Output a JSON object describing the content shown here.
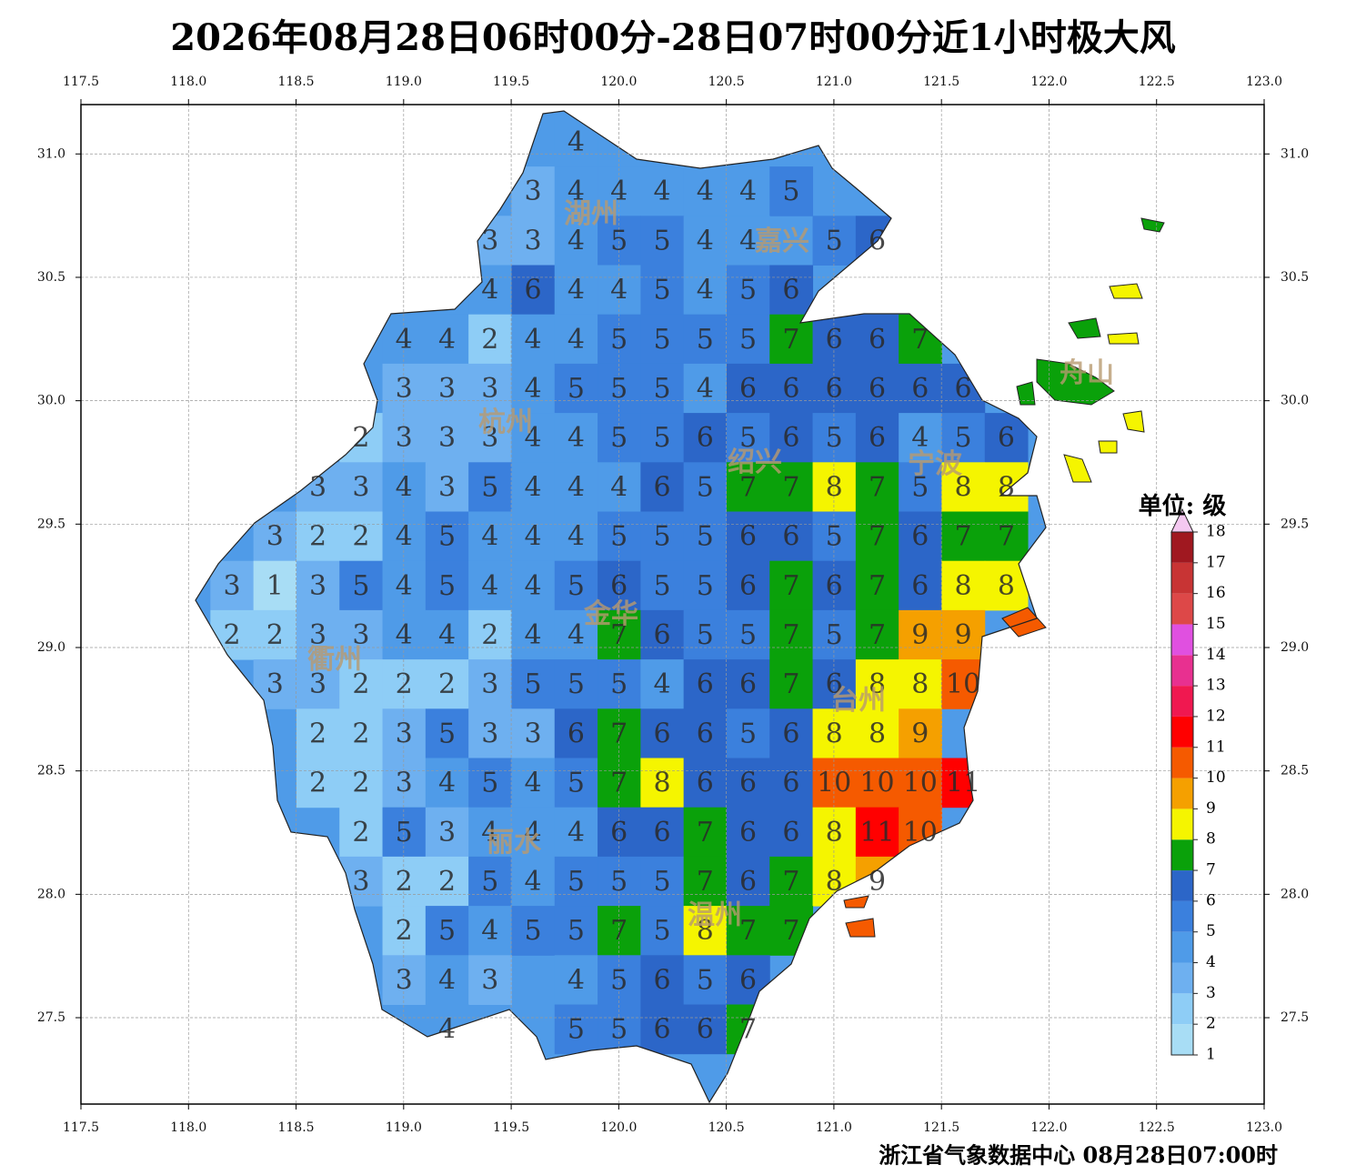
{
  "title": "2026年08月28日06时00分-28日07时00分近1小时极大风",
  "footer": "浙江省气象数据中心 08月28日07:00时",
  "map": {
    "xlim": [
      117.5,
      123.0
    ],
    "ylim": [
      27.15,
      31.2
    ],
    "xticks": [
      117.5,
      {
        "value": 118,
        "label": "118.0"
      },
      118.5,
      {
        "value": 119,
        "label": "119.0"
      },
      119.5,
      {
        "value": 120,
        "label": "120.0"
      },
      120.5,
      {
        "value": 121,
        "label": "121.0"
      },
      121.5,
      {
        "value": 122,
        "label": "122.0"
      },
      122.5,
      {
        "value": 123,
        "label": "123.0"
      }
    ],
    "yticks": [
      27.5,
      {
        "value": 28,
        "label": "28.0"
      },
      28.5,
      {
        "value": 29,
        "label": "29.0"
      },
      29.5,
      {
        "value": 30,
        "label": "30.0"
      },
      30.5,
      {
        "value": 31,
        "label": "31.0"
      }
    ],
    "grid": true
  },
  "cities": [
    "湖州",
    "嘉兴",
    "杭州",
    "绍兴",
    "宁波",
    "舟山",
    "金华",
    "衢州",
    "台州",
    "丽水",
    "温州"
  ],
  "wind_grid": [
    [
      null,
      null,
      null,
      null,
      null,
      null,
      null,
      null,
      4,
      null,
      null,
      null,
      null,
      null,
      null,
      null,
      null,
      null,
      null,
      null
    ],
    [
      null,
      null,
      null,
      null,
      null,
      null,
      null,
      3,
      4,
      4,
      4,
      4,
      4,
      5,
      null,
      null,
      null,
      null,
      null,
      null
    ],
    [
      null,
      null,
      null,
      null,
      null,
      null,
      3,
      3,
      4,
      5,
      5,
      4,
      4,
      null,
      5,
      6,
      null,
      null,
      null,
      null
    ],
    [
      null,
      null,
      null,
      null,
      null,
      null,
      4,
      6,
      4,
      4,
      5,
      4,
      5,
      6,
      null,
      null,
      null,
      null,
      null,
      null
    ],
    [
      null,
      null,
      null,
      null,
      4,
      4,
      2,
      4,
      4,
      5,
      5,
      5,
      5,
      7,
      6,
      6,
      7,
      null,
      null,
      null
    ],
    [
      null,
      null,
      null,
      null,
      3,
      3,
      3,
      4,
      5,
      5,
      5,
      4,
      6,
      6,
      6,
      6,
      6,
      6,
      null,
      null
    ],
    [
      null,
      null,
      null,
      2,
      3,
      3,
      3,
      4,
      4,
      5,
      5,
      6,
      5,
      6,
      5,
      6,
      4,
      5,
      6,
      null
    ],
    [
      null,
      null,
      3,
      3,
      4,
      3,
      5,
      4,
      4,
      4,
      6,
      5,
      7,
      7,
      8,
      7,
      5,
      8,
      8,
      null
    ],
    [
      null,
      3,
      2,
      2,
      4,
      5,
      4,
      4,
      4,
      5,
      5,
      5,
      6,
      6,
      5,
      7,
      6,
      7,
      7,
      null
    ],
    [
      3,
      1,
      3,
      5,
      4,
      5,
      4,
      4,
      5,
      6,
      5,
      5,
      6,
      7,
      6,
      7,
      6,
      8,
      8,
      null
    ],
    [
      2,
      2,
      3,
      3,
      4,
      4,
      2,
      4,
      4,
      7,
      6,
      5,
      5,
      7,
      5,
      7,
      9,
      9,
      null,
      null
    ],
    [
      null,
      3,
      3,
      2,
      2,
      2,
      3,
      5,
      5,
      5,
      4,
      6,
      6,
      7,
      6,
      8,
      8,
      10,
      null,
      null
    ],
    [
      null,
      null,
      2,
      2,
      3,
      5,
      3,
      3,
      6,
      7,
      6,
      6,
      5,
      6,
      8,
      8,
      9,
      null,
      null,
      null
    ],
    [
      null,
      null,
      2,
      2,
      3,
      4,
      5,
      4,
      5,
      7,
      8,
      6,
      6,
      6,
      10,
      10,
      10,
      11,
      null,
      null
    ],
    [
      null,
      null,
      null,
      2,
      5,
      3,
      4,
      4,
      4,
      6,
      6,
      7,
      6,
      6,
      8,
      11,
      10,
      null,
      null,
      null
    ],
    [
      null,
      null,
      null,
      3,
      2,
      2,
      5,
      4,
      5,
      5,
      5,
      7,
      6,
      7,
      8,
      9,
      null,
      null,
      null,
      null
    ],
    [
      null,
      null,
      null,
      null,
      2,
      5,
      4,
      5,
      5,
      7,
      5,
      8,
      7,
      7,
      null,
      null,
      null,
      null,
      null,
      null
    ],
    [
      null,
      null,
      null,
      null,
      3,
      4,
      3,
      null,
      4,
      5,
      6,
      5,
      6,
      null,
      null,
      null,
      null,
      null,
      null,
      null
    ],
    [
      null,
      null,
      null,
      null,
      null,
      4,
      null,
      null,
      5,
      5,
      6,
      6,
      7,
      null,
      null,
      null,
      null,
      null,
      null,
      null
    ]
  ],
  "colorbar": {
    "title": "单位: 级",
    "levels": [
      1,
      2,
      3,
      4,
      5,
      6,
      7,
      8,
      9,
      10,
      11,
      12,
      13,
      14,
      15,
      16,
      17,
      18
    ],
    "colors": [
      "#a8ddf5",
      "#8ecdf6",
      "#6eb0f0",
      "#4f9be8",
      "#3b80dd",
      "#2c66c8",
      "#0aa10a",
      "#f5f500",
      "#f5a000",
      "#f55a00",
      "#ff0000",
      "#f01850",
      "#e83090",
      "#e050e0",
      "#dd4848",
      "#c83434",
      "#a01820"
    ],
    "extend_color": "#f4c8f0"
  }
}
